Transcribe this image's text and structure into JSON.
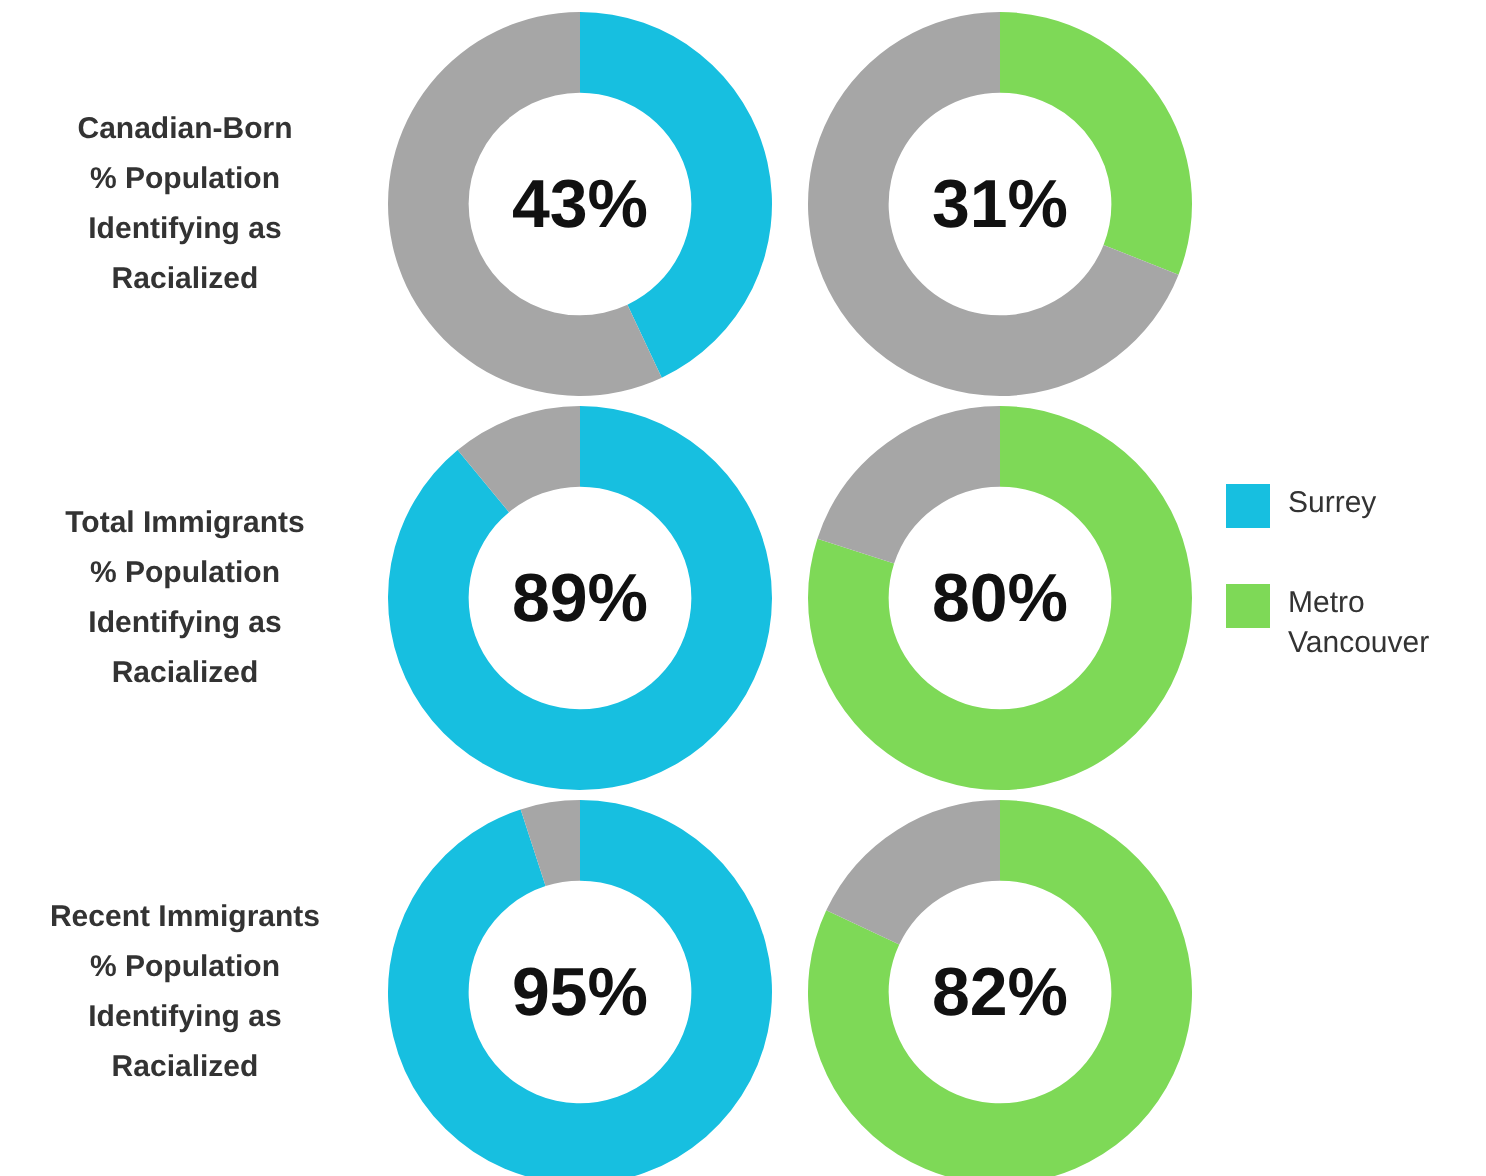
{
  "chart_data": [
    {
      "type": "donut",
      "title": "Canadian-Born\n% Population\nIdentifying as\nRacialized",
      "categories": [
        null,
        null
      ],
      "values": [
        43,
        57
      ],
      "colors": [
        "#17bfe0",
        "#a6a6a6"
      ],
      "annotations": [
        "43%"
      ]
    },
    {
      "type": "donut",
      "categories": [
        null,
        null
      ],
      "values": [
        31,
        69
      ],
      "colors": [
        "#7ed957",
        "#a6a6a6"
      ],
      "annotations": [
        "31%"
      ]
    },
    {
      "type": "donut",
      "title": "Total Immigrants\n% Population\nIdentifying as\nRacialized",
      "categories": [
        "Surrey",
        null
      ],
      "values": [
        89,
        11
      ],
      "colors": [
        "#17bfe0",
        "#a6a6a6"
      ],
      "annotations": [
        "89%"
      ],
      "legend": "right"
    },
    {
      "type": "donut",
      "categories": [
        "Metro Vancouver",
        null
      ],
      "values": [
        80,
        20
      ],
      "colors": [
        "#7ed957",
        "#a6a6a6"
      ],
      "annotations": [
        "80%"
      ],
      "legend": "right"
    },
    {
      "type": "donut",
      "title": "Recent Immigrants\n% Population\nIdentifying as\nRacialized",
      "categories": [
        null,
        null
      ],
      "values": [
        95,
        5
      ],
      "colors": [
        "#17bfe0",
        "#a6a6a6"
      ],
      "annotations": [
        "95%"
      ]
    },
    {
      "type": "donut",
      "categories": [
        null,
        null
      ],
      "values": [
        82,
        18
      ],
      "colors": [
        "#7ed957",
        "#a6a6a6"
      ],
      "annotations": [
        "82%"
      ]
    }
  ]
}
